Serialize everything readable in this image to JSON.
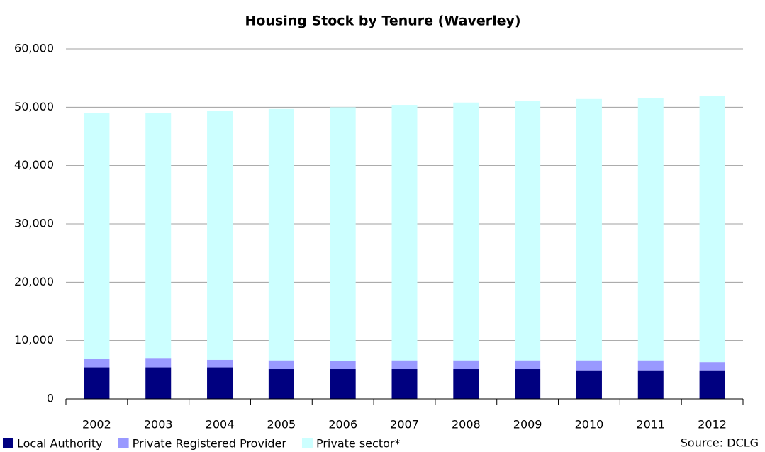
{
  "chart_data": {
    "type": "stacked_bar",
    "title": "Housing Stock by Tenure (Waverley)",
    "categories": [
      "2002",
      "2003",
      "2004",
      "2005",
      "2006",
      "2007",
      "2008",
      "2009",
      "2010",
      "2011",
      "2012"
    ],
    "series": [
      {
        "name": "Local Authority",
        "color": "#000080",
        "values": [
          5400,
          5400,
          5400,
          5100,
          5100,
          5100,
          5100,
          5100,
          4900,
          4900,
          4900
        ]
      },
      {
        "name": "Private Registered Provider",
        "color": "#9999ff",
        "values": [
          1400,
          1500,
          1300,
          1500,
          1400,
          1500,
          1500,
          1500,
          1700,
          1700,
          1400
        ]
      },
      {
        "name": "Private sector*",
        "color": "#ccffff",
        "values": [
          42150,
          42150,
          42700,
          43100,
          43500,
          43800,
          44200,
          44500,
          44800,
          45000,
          45600
        ]
      }
    ],
    "ylim": [
      0,
      60000
    ],
    "yticks": [
      0,
      {
        "value": 10000,
        "label": "10,000"
      },
      {
        "value": 20000,
        "label": "20,000"
      },
      {
        "value": 30000,
        "label": "30,000"
      },
      {
        "value": 40000,
        "label": "40,000"
      },
      {
        "value": 50000,
        "label": "50,000"
      },
      {
        "value": 60000,
        "label": "60,000"
      }
    ],
    "grid": true,
    "legend": "bottom-left",
    "source": "Source: DCLG"
  }
}
